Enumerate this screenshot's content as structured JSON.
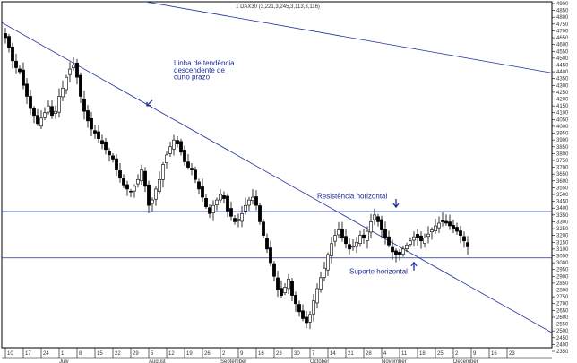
{
  "chart_data": {
    "type": "candlestick",
    "title": "1 DAX30 (3,221,3,245,3,113,3,116)",
    "ylim": [
      2350,
      4900
    ],
    "y_ticks": [
      2350,
      2400,
      2450,
      2500,
      2550,
      2600,
      2650,
      2700,
      2750,
      2800,
      2850,
      2900,
      2950,
      3000,
      3050,
      3100,
      3150,
      3200,
      3250,
      3300,
      3350,
      3400,
      3450,
      3500,
      3550,
      3600,
      3650,
      3700,
      3750,
      3800,
      3850,
      3900,
      3950,
      4000,
      4050,
      4100,
      4150,
      4200,
      4250,
      4300,
      4350,
      4400,
      4450,
      4500,
      4550,
      4600,
      4650,
      4700,
      4750,
      4800,
      4850,
      4900
    ],
    "x_ticks": [
      {
        "label": "10",
        "i": 0
      },
      {
        "label": "17",
        "i": 5
      },
      {
        "label": "24",
        "i": 10
      },
      {
        "label": "1",
        "i": 15
      },
      {
        "label": "8",
        "i": 20
      },
      {
        "label": "15",
        "i": 25
      },
      {
        "label": "22",
        "i": 30
      },
      {
        "label": "29",
        "i": 35
      },
      {
        "label": "5",
        "i": 40
      },
      {
        "label": "12",
        "i": 45
      },
      {
        "label": "19",
        "i": 50
      },
      {
        "label": "26",
        "i": 55
      },
      {
        "label": "2",
        "i": 60
      },
      {
        "label": "9",
        "i": 65
      },
      {
        "label": "16",
        "i": 70
      },
      {
        "label": "23",
        "i": 75
      },
      {
        "label": "30",
        "i": 80
      },
      {
        "label": "7",
        "i": 85
      },
      {
        "label": "14",
        "i": 90
      },
      {
        "label": "21",
        "i": 95
      },
      {
        "label": "28",
        "i": 100
      },
      {
        "label": "4",
        "i": 105
      },
      {
        "label": "11",
        "i": 110
      },
      {
        "label": "18",
        "i": 115
      },
      {
        "label": "25",
        "i": 120
      },
      {
        "label": "2",
        "i": 125
      },
      {
        "label": "9",
        "i": 130
      },
      {
        "label": "16",
        "i": 135
      },
      {
        "label": "23",
        "i": 140
      }
    ],
    "months": [
      {
        "label": "July",
        "i": 15
      },
      {
        "label": "August",
        "i": 40
      },
      {
        "label": "September",
        "i": 60
      },
      {
        "label": "October",
        "i": 85
      },
      {
        "label": "November",
        "i": 105
      },
      {
        "label": "December",
        "i": 125
      }
    ],
    "closes": [
      4650,
      4580,
      4480,
      4430,
      4400,
      4300,
      4220,
      4130,
      4080,
      4020,
      4060,
      4100,
      4150,
      4080,
      4110,
      4220,
      4280,
      4360,
      4420,
      4450,
      4360,
      4220,
      4110,
      4040,
      3980,
      3950,
      3910,
      3870,
      3830,
      3790,
      3760,
      3680,
      3620,
      3570,
      3540,
      3520,
      3560,
      3610,
      3680,
      3560,
      3420,
      3460,
      3540,
      3610,
      3720,
      3790,
      3850,
      3900,
      3870,
      3810,
      3740,
      3700,
      3680,
      3610,
      3540,
      3480,
      3410,
      3360,
      3420,
      3460,
      3500,
      3470,
      3380,
      3340,
      3300,
      3320,
      3360,
      3420,
      3460,
      3480,
      3420,
      3300,
      3200,
      3100,
      3000,
      2900,
      2800,
      2760,
      2820,
      2880,
      2760,
      2700,
      2640,
      2590,
      2560,
      2620,
      2720,
      2810,
      2890,
      2960,
      3060,
      3140,
      3200,
      3240,
      3180,
      3140,
      3100,
      3120,
      3150,
      3200,
      3180,
      3230,
      3300,
      3350,
      3300,
      3240,
      3180,
      3130,
      3080,
      3060,
      3060,
      3100,
      3130,
      3160,
      3190,
      3180,
      3160,
      3180,
      3210,
      3240,
      3270,
      3290,
      3300,
      3290,
      3270,
      3250,
      3230,
      3200,
      3160,
      3116
    ],
    "series": [
      {
        "name": "",
        "type": "line",
        "points": [
          [
            -4,
            4805
          ],
          [
            155,
            2450
          ]
        ]
      },
      {
        "name": "",
        "type": "line",
        "points": [
          [
            30,
            4955
          ],
          [
            155,
            4380
          ]
        ]
      },
      {
        "name": "",
        "type": "line",
        "points": [
          [
            -4,
            3375
          ],
          [
            155,
            3375
          ]
        ]
      },
      {
        "name": "",
        "type": "line",
        "points": [
          [
            -4,
            3035
          ],
          [
            155,
            3035
          ]
        ]
      }
    ],
    "annotations": [
      {
        "text": "Linha de tendência",
        "i": 47,
        "y": 4445
      },
      {
        "text": "descendente de",
        "i": 47,
        "y": 4395
      },
      {
        "text": "curto prazo",
        "i": 47,
        "y": 4345
      },
      {
        "text": "Resistência horizontal",
        "i": 87,
        "y": 3470
      },
      {
        "text": "Suporte horizontal",
        "i": 96,
        "y": 2918
      }
    ],
    "arrows": [
      {
        "dir": "down",
        "i": 109,
        "y": 3375
      },
      {
        "dir": "up",
        "i": 114,
        "y": 3035
      },
      {
        "dir": "down-left",
        "i": 40,
        "y": 4165
      }
    ],
    "grid": false,
    "colors": {
      "up": "#ffffff",
      "down": "#000000",
      "line": "#1a2b9c",
      "text": "#1a2b9c"
    }
  }
}
